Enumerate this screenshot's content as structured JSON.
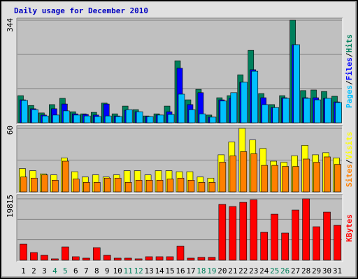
{
  "chart_data": [
    {
      "type": "bar",
      "title": "Daily usage for December 2010",
      "title_color": "#0000c0",
      "ylim": [
        0,
        344
      ],
      "yticks": [
        344
      ],
      "legend_separator": "/",
      "series": [
        {
          "name": "Hits",
          "color": "#00805c",
          "values": [
            91,
            58,
            33,
            61,
            82,
            37,
            30,
            35,
            66,
            30,
            56,
            44,
            23,
            30,
            56,
            208,
            77,
            112,
            26,
            84,
            91,
            161,
            243,
            98,
            61,
            91,
            344,
            108,
            110,
            105,
            89
          ]
        },
        {
          "name": "Files",
          "color": "#0000ff",
          "values": [
            77,
            47,
            26,
            47,
            63,
            30,
            28,
            26,
            63,
            23,
            42,
            37,
            21,
            26,
            37,
            183,
            61,
            101,
            19,
            77,
            82,
            136,
            178,
            84,
            51,
            84,
            262,
            84,
            84,
            82,
            70
          ]
        },
        {
          "name": "Pages",
          "color": "#00c0ff",
          "values": [
            75,
            44,
            23,
            26,
            40,
            26,
            23,
            21,
            23,
            21,
            44,
            37,
            21,
            26,
            28,
            96,
            44,
            30,
            19,
            73,
            101,
            136,
            173,
            61,
            51,
            82,
            262,
            82,
            77,
            82,
            68
          ]
        }
      ]
    },
    {
      "type": "bar",
      "ylim": [
        0,
        60
      ],
      "yticks": [
        60
      ],
      "legend_separator": "/",
      "series": [
        {
          "name": "Visits",
          "color": "#ffff00",
          "values": [
            22,
            20,
            17,
            16,
            32,
            19,
            14,
            16,
            14,
            16,
            20,
            20,
            16,
            20,
            20,
            19,
            19,
            14,
            13,
            35,
            47,
            60,
            49,
            41,
            29,
            28,
            34,
            44,
            35,
            37,
            32
          ]
        },
        {
          "name": "Sites",
          "color": "#ff8000",
          "values": [
            14,
            13,
            16,
            11,
            29,
            12,
            9,
            9,
            13,
            13,
            9,
            11,
            11,
            11,
            12,
            13,
            11,
            9,
            9,
            28,
            34,
            38,
            36,
            25,
            25,
            24,
            24,
            31,
            28,
            33,
            26
          ]
        }
      ]
    },
    {
      "type": "bar",
      "ylim": [
        0,
        19815
      ],
      "yticks": [
        19815
      ],
      "categories": [
        "1",
        "2",
        "3",
        "4",
        "5",
        "6",
        "7",
        "8",
        "9",
        "10",
        "11",
        "12",
        "13",
        "14",
        "15",
        "16",
        "17",
        "18",
        "19",
        "20",
        "21",
        "22",
        "23",
        "24",
        "25",
        "26",
        "27",
        "28",
        "29",
        "30",
        "31"
      ],
      "category_colors": [
        "#000000",
        "#000000",
        "#000000",
        "#00805c",
        "#00805c",
        "#000000",
        "#000000",
        "#000000",
        "#000000",
        "#000000",
        "#00805c",
        "#00805c",
        "#000000",
        "#000000",
        "#000000",
        "#000000",
        "#000000",
        "#00805c",
        "#00805c",
        "#000000",
        "#000000",
        "#000000",
        "#000000",
        "#000000",
        "#00805c",
        "#00805c",
        "#000000",
        "#000000",
        "#000000",
        "#000000",
        "#000000"
      ],
      "series": [
        {
          "name": "KBytes",
          "color": "#ff0000",
          "values": [
            5175,
            2475,
            1575,
            450,
            4275,
            1125,
            675,
            4050,
            1575,
            675,
            675,
            450,
            1125,
            1125,
            1125,
            4500,
            675,
            900,
            900,
            18000,
            17325,
            18675,
            19500,
            9000,
            14850,
            8775,
            16200,
            19815,
            10800,
            15525,
            11250
          ]
        }
      ]
    }
  ]
}
